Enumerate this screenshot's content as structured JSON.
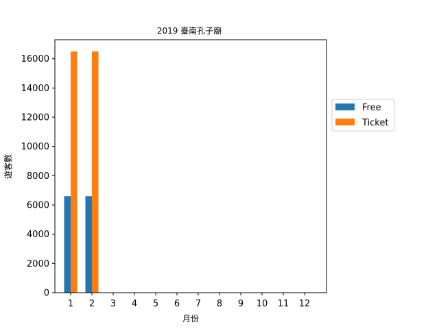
{
  "chart_data": {
    "type": "bar",
    "title": "2019 臺南孔子廟",
    "xlabel": "月份",
    "ylabel": "遊客數",
    "categories": [
      "1",
      "2",
      "3",
      "4",
      "5",
      "6",
      "7",
      "8",
      "9",
      "10",
      "11",
      "12"
    ],
    "series": [
      {
        "name": "Free",
        "color": "#1f77b4",
        "values": [
          6600,
          6600,
          0,
          0,
          0,
          0,
          0,
          0,
          0,
          0,
          0,
          0
        ]
      },
      {
        "name": "Ticket",
        "color": "#ff7f0e",
        "values": [
          16500,
          16500,
          0,
          0,
          0,
          0,
          0,
          0,
          0,
          0,
          0,
          0
        ]
      }
    ],
    "ylim": [
      0,
      17300
    ],
    "yticks": [
      0,
      2000,
      4000,
      6000,
      8000,
      10000,
      12000,
      14000,
      16000
    ],
    "grid": false,
    "legend_position": "right"
  }
}
